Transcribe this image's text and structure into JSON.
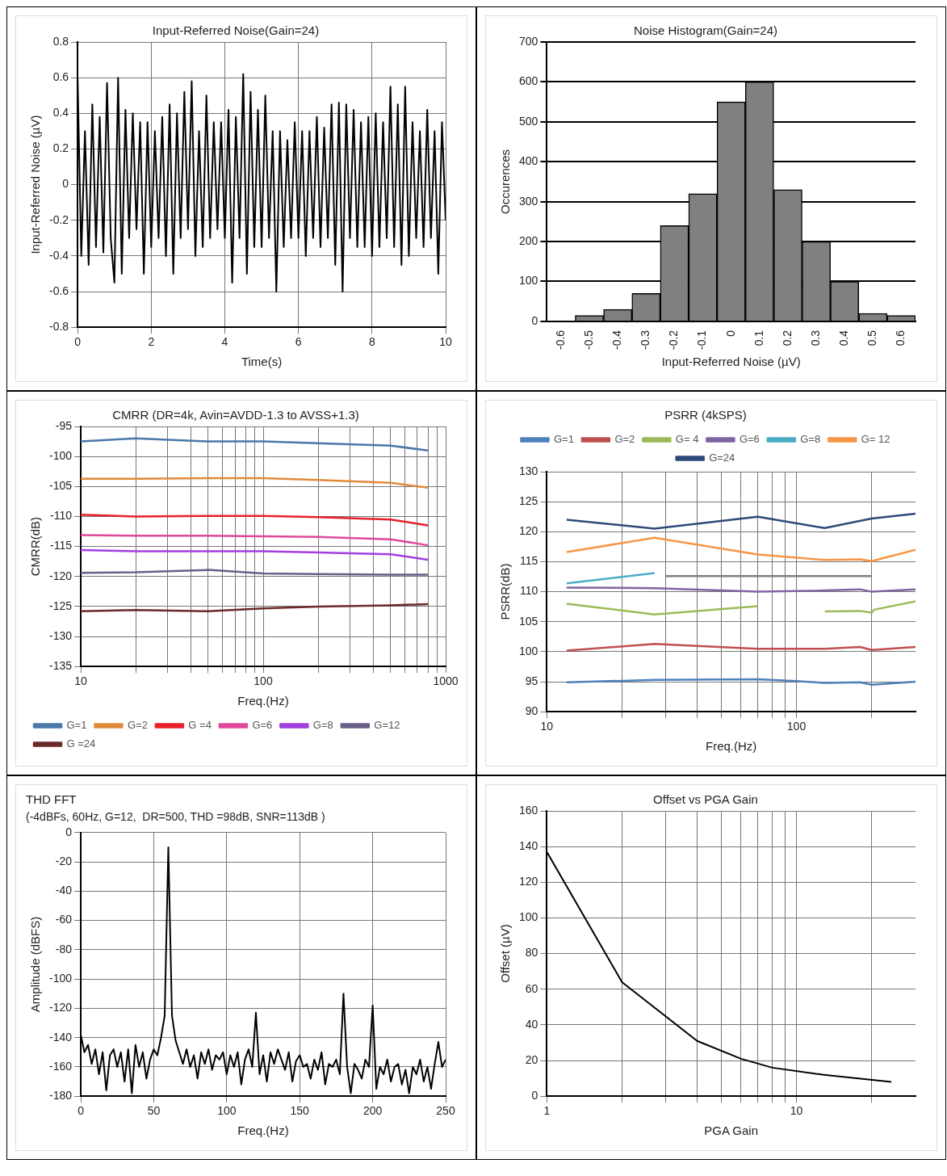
{
  "chart_data": [
    {
      "type": "line",
      "title": "Input-Referred Noise(Gain=24)",
      "xlabel": "Time(s)",
      "ylabel": "Input-Referred Noise (µV)",
      "xlim": [
        0,
        10
      ],
      "xticks": [
        0,
        2,
        4,
        6,
        8,
        10
      ],
      "ylim": [
        -0.8,
        0.8
      ],
      "yticks": [
        -0.8,
        -0.6,
        -0.4,
        -0.2,
        0,
        0.2,
        0.4,
        0.6,
        0.8
      ],
      "grid": true,
      "x": [
        0,
        0.1,
        0.2,
        0.3,
        0.4,
        0.5,
        0.6,
        0.7,
        0.8,
        0.9,
        1,
        1.1,
        1.2,
        1.3,
        1.4,
        1.5,
        1.6,
        1.7,
        1.8,
        1.9,
        2,
        2.1,
        2.2,
        2.3,
        2.4,
        2.5,
        2.6,
        2.7,
        2.8,
        2.9,
        3,
        3.1,
        3.2,
        3.3,
        3.4,
        3.5,
        3.6,
        3.7,
        3.8,
        3.9,
        4,
        4.1,
        4.2,
        4.3,
        4.4,
        4.5,
        4.6,
        4.7,
        4.8,
        4.9,
        5,
        5.1,
        5.2,
        5.3,
        5.4,
        5.5,
        5.6,
        5.7,
        5.8,
        5.9,
        6,
        6.1,
        6.2,
        6.3,
        6.4,
        6.5,
        6.6,
        6.7,
        6.8,
        6.9,
        7,
        7.1,
        7.2,
        7.3,
        7.4,
        7.5,
        7.6,
        7.7,
        7.8,
        7.9,
        8,
        8.1,
        8.2,
        8.3,
        8.4,
        8.5,
        8.6,
        8.7,
        8.8,
        8.9,
        9,
        9.1,
        9.2,
        9.3,
        9.4,
        9.5,
        9.6,
        9.7,
        9.8,
        9.9,
        10
      ],
      "series": [
        {
          "color": "#000000",
          "values": [
            0.6,
            -0.4,
            0.3,
            -0.45,
            0.45,
            -0.35,
            0.38,
            -0.38,
            0.57,
            -0.3,
            -0.55,
            0.6,
            -0.5,
            0.42,
            -0.3,
            0.4,
            -0.25,
            0.35,
            -0.5,
            0.35,
            -0.35,
            0.3,
            -0.3,
            0.38,
            -0.4,
            0.45,
            -0.5,
            0.4,
            -0.3,
            0.52,
            -0.25,
            0.58,
            -0.4,
            0.3,
            -0.35,
            0.5,
            -0.3,
            0.35,
            -0.25,
            0.35,
            -0.3,
            0.42,
            -0.55,
            0.38,
            -0.3,
            0.62,
            -0.5,
            0.52,
            -0.35,
            0.42,
            -0.35,
            0.5,
            -0.3,
            0.3,
            -0.6,
            0.3,
            -0.35,
            0.25,
            -0.3,
            0.35,
            -0.3,
            0.3,
            -0.4,
            0.3,
            -0.3,
            0.38,
            -0.35,
            0.32,
            -0.3,
            0.45,
            -0.45,
            0.46,
            -0.6,
            0.45,
            -0.3,
            0.42,
            -0.35,
            0.35,
            -0.35,
            0.38,
            -0.4,
            0.4,
            -0.35,
            0.35,
            -0.3,
            0.55,
            -0.35,
            0.45,
            -0.45,
            0.55,
            -0.4,
            0.35,
            -0.3,
            0.3,
            -0.35,
            0.42,
            -0.3,
            0.3,
            -0.5,
            0.35,
            -0.2
          ]
        }
      ]
    },
    {
      "type": "bar",
      "title": "Noise Histogram(Gain=24)",
      "xlabel": "Input-Referred Noise (µV)",
      "ylabel": "Occurences",
      "categories": [
        "-0.6",
        "-0.5",
        "-0.4",
        "-0.3",
        "-0.2",
        "-0.1",
        "0",
        "0.1",
        "0.2",
        "0.3",
        "0.4",
        "0.5",
        "0.6"
      ],
      "values": [
        0,
        15,
        30,
        70,
        240,
        320,
        550,
        600,
        330,
        200,
        100,
        20,
        15
      ],
      "color": "#808080",
      "ylim": [
        0,
        700
      ],
      "yticks": [
        0,
        100,
        200,
        300,
        400,
        500,
        600,
        700
      ],
      "grid": "y"
    },
    {
      "type": "line",
      "title": "CMRR (DR=4k, Avin=AVDD-1.3 to AVSS+1.3)",
      "xlabel": "Freq.(Hz)",
      "ylabel": "CMRR(dB)",
      "log": "x",
      "xlim": [
        10,
        1000
      ],
      "xticks": [
        10,
        {
          "value": 20,
          "label": null
        },
        {
          "value": 30,
          "label": null
        },
        {
          "value": 40,
          "label": null
        },
        {
          "value": 50,
          "label": null
        },
        {
          "value": 60,
          "label": null
        },
        {
          "value": 70,
          "label": null
        },
        {
          "value": 80,
          "label": null
        },
        {
          "value": 90,
          "label": null
        },
        100,
        {
          "value": 200,
          "label": null
        },
        {
          "value": 300,
          "label": null
        },
        {
          "value": 400,
          "label": null
        },
        {
          "value": 500,
          "label": null
        },
        {
          "value": 600,
          "label": null
        },
        {
          "value": 700,
          "label": null
        },
        {
          "value": 800,
          "label": null
        },
        {
          "value": 900,
          "label": null
        },
        1000
      ],
      "ylim": [
        -135,
        -95
      ],
      "yticks": [
        -135,
        -130,
        -125,
        -120,
        -115,
        -110,
        -105,
        -100,
        -95
      ],
      "grid": true,
      "legend": "bottom left",
      "x": [
        10,
        20,
        50,
        100,
        200,
        500,
        800
      ],
      "series": [
        {
          "name": "G=1",
          "color": "#4a78a8",
          "values": [
            -97.5,
            -97,
            -97.5,
            -97.5,
            -97.8,
            -98.2,
            -99
          ]
        },
        {
          "name": "G=2",
          "color": "#e08a3c",
          "values": [
            -103.7,
            -103.7,
            -103.6,
            -103.6,
            -103.9,
            -104.4,
            -105.2
          ]
        },
        {
          "name": "G =4",
          "color": "#e8202a",
          "values": [
            -109.7,
            -110,
            -109.9,
            -109.9,
            -110.1,
            -110.5,
            -111.5
          ]
        },
        {
          "name": "G=6",
          "color": "#e0489a",
          "values": [
            -113.1,
            -113.2,
            -113.2,
            -113.3,
            -113.4,
            -113.8,
            -114.8
          ]
        },
        {
          "name": "G=8",
          "color": "#a33ee0",
          "values": [
            -115.6,
            -115.8,
            -115.8,
            -115.8,
            -116,
            -116.3,
            -117.2
          ]
        },
        {
          "name": "G=12",
          "color": "#6a5f88",
          "values": [
            -119.4,
            -119.3,
            -118.9,
            -119.5,
            -119.6,
            -119.7,
            -119.7
          ]
        },
        {
          "name": "G =24",
          "color": "#6b2a2a",
          "values": [
            -125.8,
            -125.6,
            -125.8,
            -125.3,
            -125,
            -124.8,
            -124.6
          ]
        }
      ]
    },
    {
      "type": "line",
      "title": "PSRR (4kSPS)",
      "xlabel": "Freq.(Hz)",
      "ylabel": "PSRR(dB)",
      "log": "x",
      "xlim": [
        10,
        300
      ],
      "xticks": [
        10,
        {
          "value": 20,
          "label": null
        },
        {
          "value": 30,
          "label": null
        },
        {
          "value": 40,
          "label": null
        },
        {
          "value": 50,
          "label": null
        },
        {
          "value": 60,
          "label": null
        },
        {
          "value": 70,
          "label": null
        },
        {
          "value": 80,
          "label": null
        },
        {
          "value": 90,
          "label": null
        },
        100,
        {
          "value": 200,
          "label": null
        }
      ],
      "ylim": [
        90,
        130
      ],
      "yticks": [
        90,
        95,
        100,
        105,
        110,
        115,
        120,
        125,
        130
      ],
      "grid": true,
      "legend": "top",
      "series": [
        {
          "name": "G=1",
          "color": "#4f81bd",
          "x": [
            12,
            27,
            70,
            100,
            130,
            180,
            200,
            300
          ],
          "values": [
            94.9,
            95.3,
            95.4,
            95.1,
            94.8,
            94.9,
            94.5,
            95
          ]
        },
        {
          "name": "G=2",
          "color": "#c0504d",
          "x": [
            12,
            27,
            70,
            130,
            180,
            200,
            300
          ],
          "values": [
            100.2,
            101.3,
            100.5,
            100.5,
            100.8,
            100.3,
            100.8
          ]
        },
        {
          "name": "G= 4",
          "color": "#9bbb59",
          "x": [
            12,
            27,
            70,
            100,
            130,
            180,
            200,
            205,
            300
          ],
          "values": [
            108,
            106.2,
            107.6,
            null,
            106.7,
            106.8,
            106.5,
            107,
            108.4
          ]
        },
        {
          "name": "G=6",
          "color": "#8064a2",
          "x": [
            12,
            27,
            70,
            130,
            180,
            200,
            300
          ],
          "values": [
            110.7,
            110.6,
            110,
            110.2,
            110.4,
            110,
            110.4
          ]
        },
        {
          "name": "G=8",
          "color": "#4bacc6",
          "x": [
            12,
            27
          ],
          "values": [
            111.4,
            113.1
          ]
        },
        {
          "name": "G= 12",
          "color": "#f79646",
          "x": [
            12,
            27,
            70,
            130,
            180,
            200,
            300
          ],
          "values": [
            116.6,
            119,
            116.2,
            115.3,
            115.4,
            115.1,
            117
          ]
        },
        {
          "name": "G=24",
          "color": "#2e4a7a",
          "x": [
            12,
            27,
            70,
            130,
            200,
            300
          ],
          "values": [
            122,
            120.5,
            122.5,
            120.6,
            122.2,
            123
          ]
        },
        {
          "color": "#808080",
          "x": [
            30,
            200
          ],
          "values": [
            112.6,
            112.6
          ]
        }
      ]
    },
    {
      "type": "line",
      "title": "THD FFT",
      "subtitle": "(-4dBFs, 60Hz, G=12,  DR=500, THD =98dB, SNR=113dB )",
      "xlabel": "Freq.(Hz)",
      "ylabel": "Amplitude (dBFS)",
      "xlim": [
        0,
        250
      ],
      "xticks": [
        0,
        50,
        100,
        150,
        200,
        250
      ],
      "ylim": [
        -180,
        0
      ],
      "yticks": [
        -180,
        -160,
        -140,
        -120,
        -100,
        -80,
        -60,
        -40,
        -20,
        0
      ],
      "grid": true,
      "x": [
        0,
        2.5,
        5,
        7.5,
        10,
        12.5,
        15,
        17.5,
        20,
        22.5,
        25,
        27.5,
        30,
        32.5,
        35,
        37.5,
        40,
        42.5,
        45,
        47.5,
        50,
        52.5,
        55,
        57.5,
        60,
        62.5,
        65,
        67.5,
        70,
        72.5,
        75,
        77.5,
        80,
        82.5,
        85,
        87.5,
        90,
        92.5,
        95,
        97.5,
        100,
        102.5,
        105,
        107.5,
        110,
        112.5,
        115,
        117.5,
        120,
        122.5,
        125,
        127.5,
        130,
        132.5,
        135,
        137.5,
        140,
        142.5,
        145,
        147.5,
        150,
        152.5,
        155,
        157.5,
        160,
        162.5,
        165,
        167.5,
        170,
        172.5,
        175,
        177.5,
        180,
        182.5,
        185,
        187.5,
        190,
        192.5,
        195,
        197.5,
        200,
        202.5,
        205,
        207.5,
        210,
        212.5,
        215,
        217.5,
        220,
        222.5,
        225,
        227.5,
        230,
        232.5,
        235,
        237.5,
        240,
        242.5,
        245,
        247.5,
        250
      ],
      "series": [
        {
          "color": "#000000",
          "values": [
            -138,
            -150,
            -145,
            -158,
            -148,
            -165,
            -150,
            -176,
            -152,
            -148,
            -160,
            -150,
            -170,
            -148,
            -178,
            -145,
            -160,
            -150,
            -168,
            -155,
            -148,
            -152,
            -140,
            -125,
            -10,
            -125,
            -142,
            -150,
            -158,
            -148,
            -160,
            -152,
            -168,
            -150,
            -158,
            -148,
            -162,
            -152,
            -155,
            -150,
            -165,
            -152,
            -160,
            -150,
            -172,
            -155,
            -148,
            -160,
            -123,
            -165,
            -152,
            -170,
            -150,
            -158,
            -148,
            -155,
            -162,
            -150,
            -170,
            -156,
            -152,
            -160,
            -158,
            -168,
            -155,
            -162,
            -150,
            -172,
            -158,
            -160,
            -155,
            -165,
            -110,
            -160,
            -178,
            -158,
            -162,
            -168,
            -155,
            -160,
            -118,
            -175,
            -160,
            -165,
            -155,
            -170,
            -160,
            -158,
            -172,
            -162,
            -178,
            -160,
            -165,
            -155,
            -170,
            -160,
            -175,
            -158,
            -143,
            -160,
            -155
          ]
        }
      ]
    },
    {
      "type": "line",
      "title": "Offset vs PGA Gain",
      "xlabel": "PGA Gain",
      "ylabel": "Offset (µV)",
      "log": "x",
      "xlim": [
        1,
        30
      ],
      "xticks": [
        1,
        {
          "value": 2,
          "label": null
        },
        {
          "value": 3,
          "label": null
        },
        {
          "value": 4,
          "label": null
        },
        {
          "value": 5,
          "label": null
        },
        {
          "value": 6,
          "label": null
        },
        {
          "value": 7,
          "label": null
        },
        {
          "value": 8,
          "label": null
        },
        {
          "value": 9,
          "label": null
        },
        10,
        {
          "value": 20,
          "label": null
        }
      ],
      "ylim": [
        0,
        160
      ],
      "yticks": [
        0,
        20,
        40,
        60,
        80,
        100,
        120,
        140,
        160
      ],
      "grid": true,
      "x": [
        1,
        2,
        4,
        6,
        8,
        12,
        24
      ],
      "series": [
        {
          "color": "#000000",
          "values": [
            137,
            64,
            31,
            21,
            16,
            12.5,
            8
          ]
        }
      ]
    }
  ]
}
